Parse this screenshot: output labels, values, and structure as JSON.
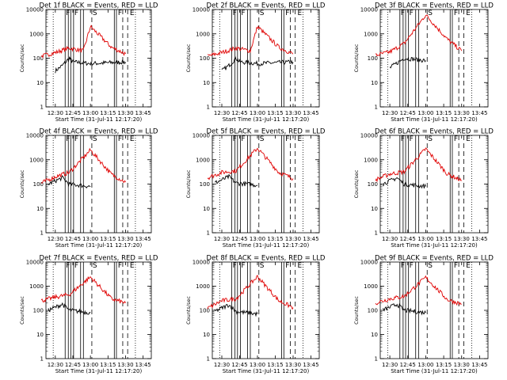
{
  "figure": {
    "xlabel": "Start Time (31-Jul-11 12:17:20)",
    "ylabel": "Counts/sec",
    "x_ticks": [
      "12:30",
      "12:45",
      "13:00",
      "13:15",
      "13:30",
      "13:45"
    ],
    "y_ticks": [
      "1",
      "10",
      "100",
      "1000",
      "10000"
    ],
    "colors": {
      "events": "#000000",
      "lld": "#e00000",
      "axes": "#000000"
    }
  },
  "chart_data": [
    {
      "type": "line",
      "title": "Det 1f BLACK = Events, RED = LLD",
      "markers": [
        "F",
        "F",
        "S",
        "F",
        "E"
      ],
      "series": [
        {
          "name": "Events",
          "color": "#000000",
          "values": [
            [
              12.5,
              30
            ],
            [
              12.6,
              50
            ],
            [
              12.7,
              100
            ],
            [
              12.75,
              70
            ],
            [
              13.0,
              60
            ],
            [
              13.5,
              70
            ]
          ]
        },
        {
          "name": "LLD",
          "color": "#e00000",
          "values": [
            [
              12.3,
              120
            ],
            [
              12.5,
              170
            ],
            [
              12.7,
              260
            ],
            [
              12.9,
              200
            ],
            [
              13.0,
              2000
            ],
            [
              13.3,
              280
            ],
            [
              13.5,
              150
            ]
          ]
        }
      ],
      "ylim": [
        1,
        10000
      ]
    },
    {
      "type": "line",
      "title": "Det 2f BLACK = Events, RED = LLD",
      "markers": [
        "F",
        "F",
        "S",
        "F",
        "E"
      ],
      "series": [
        {
          "name": "Events",
          "color": "#000000",
          "values": [
            [
              12.5,
              30
            ],
            [
              12.6,
              50
            ],
            [
              12.7,
              100
            ],
            [
              12.75,
              70
            ],
            [
              13.0,
              60
            ],
            [
              13.5,
              70
            ]
          ]
        },
        {
          "name": "LLD",
          "color": "#e00000",
          "values": [
            [
              12.3,
              120
            ],
            [
              12.5,
              170
            ],
            [
              12.7,
              260
            ],
            [
              12.9,
              200
            ],
            [
              13.0,
              2000
            ],
            [
              13.3,
              280
            ],
            [
              13.5,
              150
            ]
          ]
        }
      ],
      "ylim": [
        1,
        10000
      ]
    },
    {
      "type": "line",
      "title": "Det 3f BLACK = Events, RED = LLD",
      "markers": [
        "F",
        "F",
        "S",
        "F",
        "E"
      ],
      "series": [
        {
          "name": "Events",
          "color": "#000000",
          "values": [
            [
              12.5,
              40
            ],
            [
              12.7,
              100
            ],
            [
              13.0,
              80
            ]
          ]
        },
        {
          "name": "LLD",
          "color": "#e00000",
          "values": [
            [
              12.3,
              130
            ],
            [
              12.5,
              180
            ],
            [
              12.7,
              400
            ],
            [
              13.0,
              6000
            ],
            [
              13.3,
              600
            ],
            [
              13.5,
              200
            ]
          ]
        }
      ],
      "ylim": [
        1,
        10000
      ]
    },
    {
      "type": "line",
      "title": "Det 4f BLACK = Events, RED = LLD",
      "markers": [
        "F",
        "F",
        "S",
        "F",
        "E"
      ],
      "series": [
        {
          "name": "Events",
          "color": "#000000",
          "values": [
            [
              12.4,
              100
            ],
            [
              12.6,
              180
            ],
            [
              12.7,
              100
            ],
            [
              13.0,
              80
            ]
          ]
        },
        {
          "name": "LLD",
          "color": "#e00000",
          "values": [
            [
              12.3,
              110
            ],
            [
              12.5,
              200
            ],
            [
              12.7,
              300
            ],
            [
              13.0,
              2500
            ],
            [
              13.3,
              250
            ],
            [
              13.5,
              120
            ]
          ]
        }
      ],
      "ylim": [
        1,
        10000
      ]
    },
    {
      "type": "line",
      "title": "Det 5f BLACK = Events, RED = LLD",
      "markers": [
        "F",
        "F",
        "S",
        "F",
        "E"
      ],
      "series": [
        {
          "name": "Events",
          "color": "#000000",
          "values": [
            [
              12.4,
              110
            ],
            [
              12.6,
              200
            ],
            [
              12.7,
              110
            ],
            [
              13.0,
              90
            ]
          ]
        },
        {
          "name": "LLD",
          "color": "#e00000",
          "values": [
            [
              12.3,
              180
            ],
            [
              12.5,
              300
            ],
            [
              12.7,
              350
            ],
            [
              13.0,
              3000
            ],
            [
              13.3,
              300
            ],
            [
              13.5,
              170
            ]
          ]
        }
      ],
      "ylim": [
        1,
        10000
      ]
    },
    {
      "type": "line",
      "title": "Det 6f BLACK = Events, RED = LLD",
      "markers": [
        "F",
        "F",
        "S",
        "F",
        "E"
      ],
      "series": [
        {
          "name": "Events",
          "color": "#000000",
          "values": [
            [
              12.4,
              100
            ],
            [
              12.6,
              180
            ],
            [
              12.7,
              100
            ],
            [
              13.0,
              80
            ]
          ]
        },
        {
          "name": "LLD",
          "color": "#e00000",
          "values": [
            [
              12.3,
              150
            ],
            [
              12.5,
              260
            ],
            [
              12.7,
              320
            ],
            [
              13.0,
              2800
            ],
            [
              13.3,
              260
            ],
            [
              13.5,
              140
            ]
          ]
        }
      ],
      "ylim": [
        1,
        10000
      ]
    },
    {
      "type": "line",
      "title": "Det 7f BLACK = Events, RED = LLD",
      "markers": [
        "F",
        "F",
        "S",
        "F",
        "E"
      ],
      "series": [
        {
          "name": "Events",
          "color": "#000000",
          "values": [
            [
              12.4,
              100
            ],
            [
              12.6,
              180
            ],
            [
              12.7,
              100
            ],
            [
              13.0,
              80
            ]
          ]
        },
        {
          "name": "LLD",
          "color": "#e00000",
          "values": [
            [
              12.3,
              250
            ],
            [
              12.5,
              350
            ],
            [
              12.7,
              450
            ],
            [
              13.0,
              2400
            ],
            [
              13.3,
              300
            ],
            [
              13.5,
              200
            ]
          ]
        }
      ],
      "ylim": [
        1,
        10000
      ]
    },
    {
      "type": "line",
      "title": "Det 8f BLACK = Events, RED = LLD",
      "markers": [
        "F",
        "F",
        "S",
        "F",
        "E"
      ],
      "series": [
        {
          "name": "Events",
          "color": "#000000",
          "values": [
            [
              12.4,
              90
            ],
            [
              12.6,
              170
            ],
            [
              12.7,
              90
            ],
            [
              13.0,
              70
            ]
          ]
        },
        {
          "name": "LLD",
          "color": "#e00000",
          "values": [
            [
              12.3,
              120
            ],
            [
              12.5,
              250
            ],
            [
              12.7,
              300
            ],
            [
              13.0,
              2500
            ],
            [
              13.3,
              250
            ],
            [
              13.5,
              130
            ]
          ]
        }
      ],
      "ylim": [
        1,
        10000
      ]
    },
    {
      "type": "line",
      "title": "Det 9f BLACK = Events, RED = LLD",
      "markers": [
        "F",
        "F",
        "S",
        "F",
        "E"
      ],
      "series": [
        {
          "name": "Events",
          "color": "#000000",
          "values": [
            [
              12.4,
              100
            ],
            [
              12.6,
              180
            ],
            [
              12.7,
              100
            ],
            [
              13.0,
              80
            ]
          ]
        },
        {
          "name": "LLD",
          "color": "#e00000",
          "values": [
            [
              12.3,
              200
            ],
            [
              12.5,
              300
            ],
            [
              12.7,
              380
            ],
            [
              13.0,
              2300
            ],
            [
              13.3,
              280
            ],
            [
              13.5,
              180
            ]
          ]
        }
      ],
      "ylim": [
        1,
        10000
      ]
    }
  ]
}
